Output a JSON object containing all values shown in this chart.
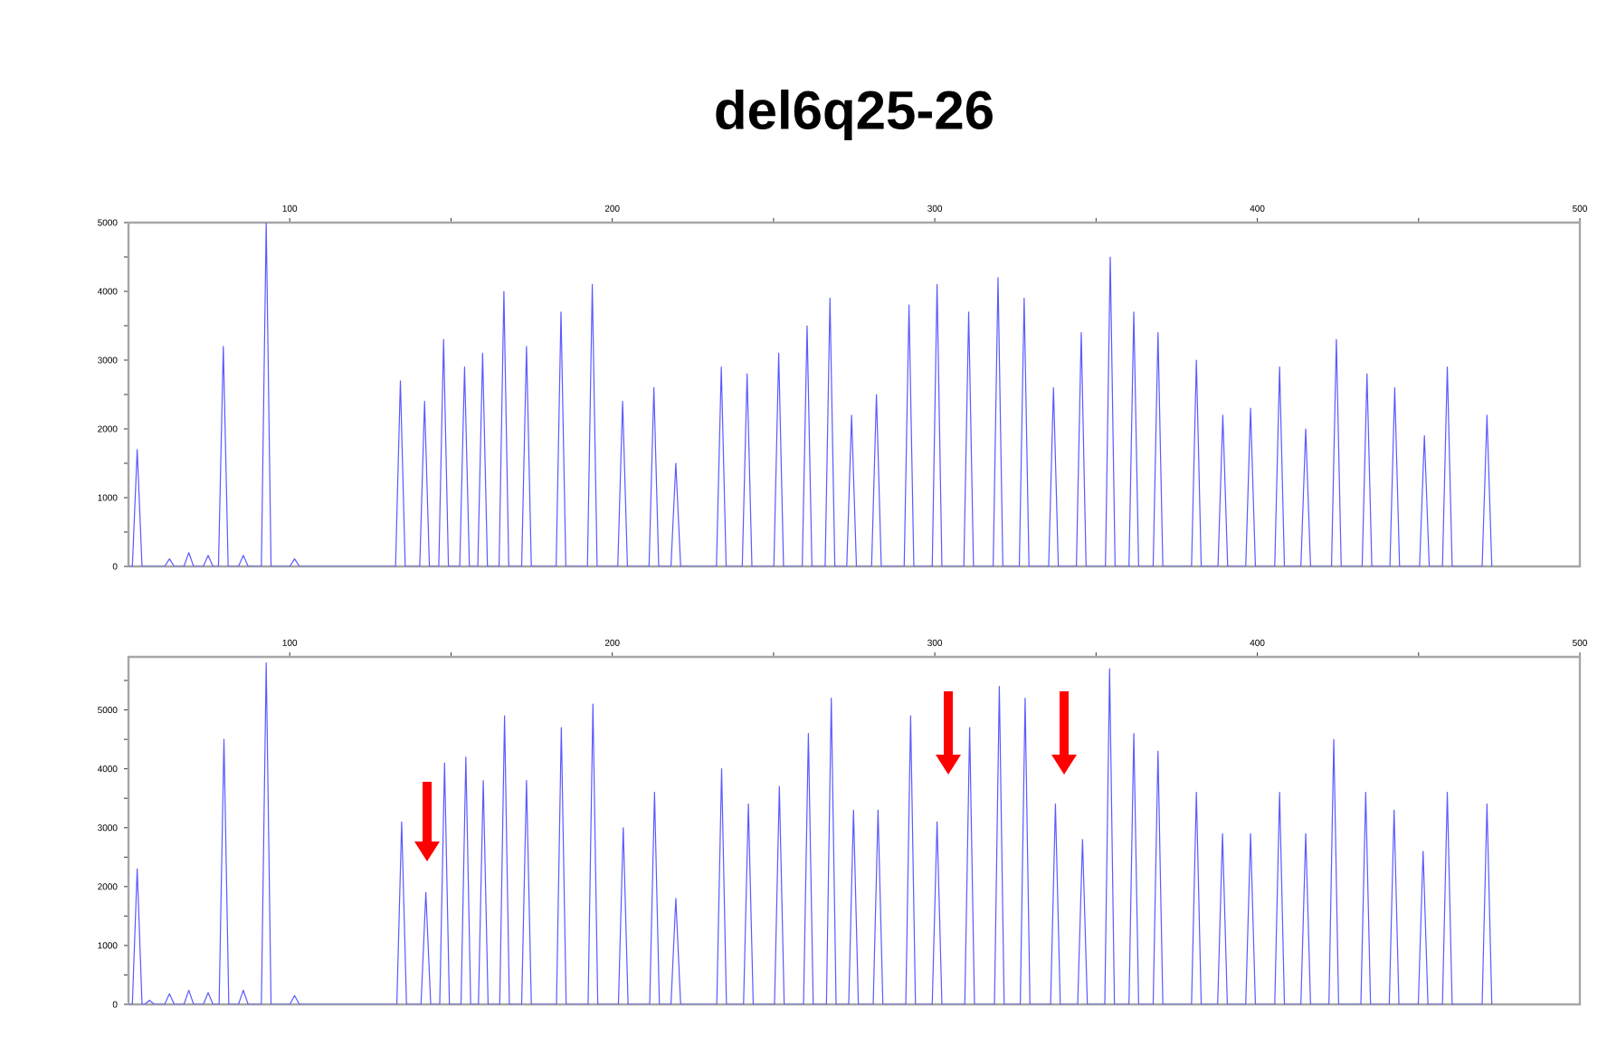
{
  "chart_data": [
    {
      "type": "line",
      "title": "del6q25-26",
      "color": "#5a5aff",
      "marker": "none",
      "line_style": "solid",
      "xlim": [
        50,
        500
      ],
      "xticks": [
        100,
        {
          "value": 150,
          "label": null
        },
        200,
        {
          "value": 250,
          "label": null
        },
        300,
        {
          "value": 350,
          "label": null
        },
        400,
        {
          "value": 450,
          "label": null
        },
        500
      ],
      "ylim": [
        0,
        5000
      ],
      "yticks": [
        0,
        {
          "value": 500,
          "label": null
        },
        1000,
        {
          "value": 1500,
          "label": null
        },
        2000,
        {
          "value": 2500,
          "label": null
        },
        3000,
        {
          "value": 3500,
          "label": null
        },
        4000,
        {
          "value": 4500,
          "label": null
        },
        5000
      ],
      "x": [
        50,
        51.2,
        52.7,
        54.2,
        61.2,
        62.7,
        64.2,
        67.2,
        68.7,
        70.2,
        73.2,
        74.7,
        76.2,
        77.9,
        79.4,
        80.9,
        84.1,
        85.6,
        87.1,
        91.2,
        92.7,
        94.2,
        100,
        101.5,
        103,
        132.8,
        134.3,
        135.8,
        140.3,
        141.8,
        143.3,
        146.2,
        147.7,
        149.2,
        152.7,
        154.2,
        155.7,
        158.3,
        159.8,
        161.3,
        164.9,
        166.4,
        167.9,
        171.9,
        173.4,
        174.9,
        182.6,
        184.1,
        185.6,
        192.3,
        193.8,
        195.3,
        201.7,
        203.2,
        204.7,
        211.4,
        212.9,
        214.4,
        218.2,
        219.7,
        221.2,
        232.3,
        233.8,
        235.3,
        240.3,
        241.8,
        243.3,
        250.1,
        251.6,
        253.1,
        258.9,
        260.4,
        261.9,
        266,
        267.5,
        269,
        272.7,
        274.2,
        275.7,
        280.4,
        281.9,
        283.4,
        290.5,
        292,
        293.5,
        299.2,
        300.7,
        302.2,
        309,
        310.5,
        312,
        318.1,
        319.6,
        321.1,
        326.2,
        327.7,
        329.2,
        335.3,
        336.8,
        338.3,
        343.9,
        345.4,
        346.9,
        352.9,
        354.4,
        355.9,
        360.2,
        361.7,
        363.2,
        367.7,
        369.2,
        370.7,
        379.6,
        381.1,
        382.6,
        387.8,
        389.3,
        390.8,
        396.4,
        397.9,
        399.4,
        405.4,
        406.9,
        408.4,
        413.5,
        415,
        416.5,
        423,
        424.5,
        426,
        432.5,
        434,
        435.5,
        441.1,
        442.6,
        444.1,
        450.3,
        451.8,
        453.3,
        457.4,
        458.9,
        460.4,
        469.7,
        471.2,
        472.7
      ],
      "values": [
        0,
        0,
        1700,
        0,
        0,
        110,
        0,
        0,
        200,
        0,
        0,
        160,
        0,
        0,
        3200,
        0,
        0,
        160,
        0,
        0,
        5000,
        0,
        0,
        110,
        0,
        0,
        2700,
        0,
        0,
        2400,
        0,
        0,
        3300,
        0,
        0,
        2900,
        0,
        0,
        3100,
        0,
        0,
        4000,
        0,
        0,
        3200,
        0,
        0,
        3700,
        0,
        0,
        4100,
        0,
        0,
        2400,
        0,
        0,
        2600,
        0,
        0,
        1500,
        0,
        0,
        2900,
        0,
        0,
        2800,
        0,
        0,
        3100,
        0,
        0,
        3500,
        0,
        0,
        3900,
        0,
        0,
        2200,
        0,
        0,
        2500,
        0,
        0,
        3800,
        0,
        0,
        4100,
        0,
        0,
        3700,
        0,
        0,
        4200,
        0,
        0,
        3900,
        0,
        0,
        2600,
        0,
        0,
        3400,
        0,
        0,
        4500,
        0,
        0,
        3700,
        0,
        0,
        3400,
        0,
        0,
        3000,
        0,
        0,
        2200,
        0,
        0,
        2300,
        0,
        0,
        2900,
        0,
        0,
        2000,
        0,
        0,
        3300,
        0,
        0,
        2800,
        0,
        0,
        2600,
        0,
        0,
        1900,
        0,
        0,
        2900,
        0,
        0,
        2200,
        0
      ]
    },
    {
      "type": "line",
      "color": "#5a5aff",
      "marker": "none",
      "line_style": "solid",
      "xlim": [
        50,
        500
      ],
      "xticks": [
        100,
        {
          "value": 150,
          "label": null
        },
        200,
        {
          "value": 250,
          "label": null
        },
        300,
        {
          "value": 350,
          "label": null
        },
        400,
        {
          "value": 450,
          "label": null
        },
        500
      ],
      "ylim": [
        0,
        5900
      ],
      "yticks": [
        0,
        {
          "value": 500,
          "label": null
        },
        1000,
        {
          "value": 1500,
          "label": null
        },
        2000,
        {
          "value": 2500,
          "label": null
        },
        3000,
        {
          "value": 3500,
          "label": null
        },
        4000,
        {
          "value": 4500,
          "label": null
        },
        5000,
        {
          "value": 5500,
          "label": null
        }
      ],
      "x": [
        50,
        51.2,
        52.7,
        54.2,
        55,
        56.5,
        58,
        61.2,
        62.7,
        64.2,
        67.2,
        68.7,
        70.2,
        73.2,
        74.7,
        76.2,
        78.1,
        79.6,
        81.1,
        84.1,
        85.6,
        87.1,
        91.2,
        92.7,
        94.2,
        100,
        101.5,
        103,
        133.2,
        134.7,
        136.2,
        140.7,
        142.2,
        143.7,
        146.5,
        148,
        149.5,
        153.1,
        154.6,
        156.1,
        158.5,
        160,
        161.5,
        165.1,
        166.6,
        168.1,
        171.9,
        173.4,
        174.9,
        182.7,
        184.2,
        185.7,
        192.5,
        194,
        195.5,
        201.9,
        203.4,
        204.9,
        211.6,
        213.1,
        214.6,
        218.2,
        219.7,
        221.2,
        232.4,
        233.9,
        235.4,
        240.7,
        242.2,
        243.7,
        250.3,
        251.8,
        253.3,
        259.3,
        260.8,
        262.3,
        266.4,
        267.9,
        269.4,
        273.3,
        274.8,
        276.3,
        280.9,
        282.4,
        283.9,
        291,
        292.5,
        294,
        299.2,
        300.7,
        302.2,
        309.3,
        310.8,
        312.3,
        318.5,
        320,
        321.5,
        326.5,
        328,
        329.5,
        335.9,
        337.4,
        338.9,
        344.3,
        345.8,
        347.3,
        352.7,
        354.2,
        355.7,
        360.2,
        361.7,
        363.2,
        367.7,
        369.2,
        370.7,
        379.6,
        381.1,
        382.6,
        387.7,
        389.2,
        390.7,
        396.4,
        397.9,
        399.4,
        405.4,
        406.9,
        408.4,
        413.5,
        415,
        416.5,
        422.2,
        423.7,
        425.2,
        432.1,
        433.6,
        435.1,
        440.9,
        442.4,
        443.9,
        449.9,
        451.4,
        452.9,
        457.4,
        458.9,
        460.4,
        469.7,
        471.2,
        472.7
      ],
      "values": [
        0,
        0,
        2300,
        0,
        0,
        70,
        0,
        0,
        180,
        0,
        0,
        240,
        0,
        0,
        200,
        0,
        0,
        4500,
        0,
        0,
        240,
        0,
        0,
        5800,
        0,
        0,
        150,
        0,
        0,
        3100,
        0,
        0,
        1900,
        0,
        0,
        4100,
        0,
        0,
        4200,
        0,
        0,
        3800,
        0,
        0,
        4900,
        0,
        0,
        3800,
        0,
        0,
        4700,
        0,
        0,
        5100,
        0,
        0,
        3000,
        0,
        0,
        3600,
        0,
        0,
        1800,
        0,
        0,
        4000,
        0,
        0,
        3400,
        0,
        0,
        3700,
        0,
        0,
        4600,
        0,
        0,
        5200,
        0,
        0,
        3300,
        0,
        0,
        3300,
        0,
        0,
        4900,
        0,
        0,
        3100,
        0,
        0,
        4700,
        0,
        0,
        5400,
        0,
        0,
        5200,
        0,
        0,
        3400,
        0,
        0,
        2800,
        0,
        0,
        5700,
        0,
        0,
        4600,
        0,
        0,
        4300,
        0,
        0,
        3600,
        0,
        0,
        2900,
        0,
        0,
        2900,
        0,
        0,
        3600,
        0,
        0,
        2900,
        0,
        0,
        4500,
        0,
        0,
        3600,
        0,
        0,
        3300,
        0,
        0,
        2600,
        0,
        0,
        3600,
        0,
        0,
        3400,
        0
      ]
    }
  ]
}
